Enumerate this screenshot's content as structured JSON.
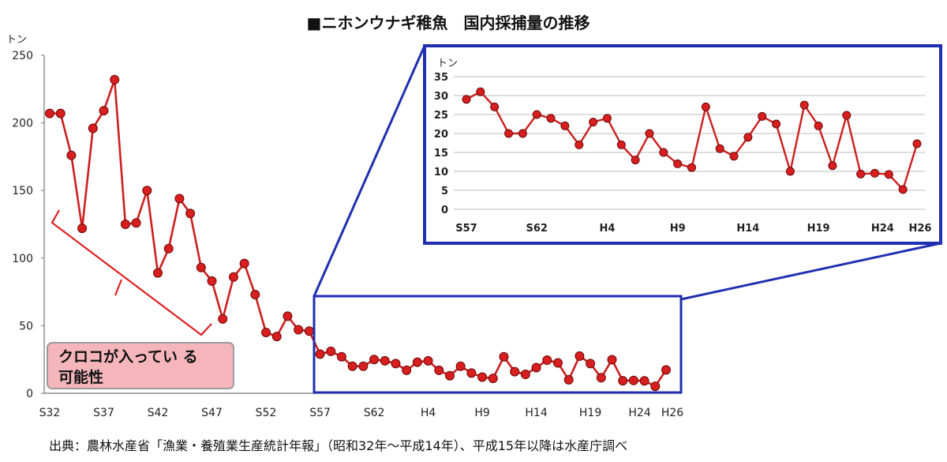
{
  "chart_data": [
    {
      "type": "line",
      "title": "■ニホンウナギ稚魚　国内採捕量の推移",
      "unit_label": "トン",
      "ylim": [
        0,
        250
      ],
      "yticks": [
        0,
        50,
        100,
        150,
        200,
        250
      ],
      "x_tick_labels": [
        "S32",
        "S37",
        "S42",
        "S47",
        "S52",
        "S57",
        "S62",
        "H4",
        "H9",
        "H14",
        "H19",
        "H24",
        "H26"
      ],
      "x_tick_indices": [
        0,
        5,
        10,
        15,
        20,
        25,
        30,
        35,
        40,
        45,
        50,
        55,
        57
      ],
      "series": [
        {
          "color": "#cc1f1f",
          "values": [
            207,
            207,
            176,
            122,
            196,
            209,
            232,
            125,
            126,
            150,
            89,
            107,
            144,
            133,
            93,
            83,
            55,
            86,
            96,
            73,
            45,
            42,
            57,
            47,
            46,
            29,
            31,
            27,
            20,
            20,
            25,
            24,
            22,
            17,
            23,
            24,
            17,
            13,
            20,
            15,
            12,
            11,
            27,
            16,
            14,
            19,
            24.5,
            22.5,
            10,
            27.5,
            22,
            11.5,
            24.8,
            9.3,
            9.5,
            9.2,
            5.2,
            17.3
          ]
        }
      ],
      "annotation": {
        "line1": "クロコが入ってい る",
        "line2": "可能性"
      },
      "source": "出典：農林水産省「漁業・養殖業生産統計年報」（昭和32年～平成14年）、平成15年以降は水産庁調べ"
    },
    {
      "type": "line",
      "unit_label": "トン",
      "ylim": [
        0,
        35
      ],
      "yticks": [
        0,
        5,
        10,
        15,
        20,
        25,
        30,
        35
      ],
      "grid": true,
      "x_tick_labels": [
        "S57",
        "S62",
        "H4",
        "H9",
        "H14",
        "H19",
        "H24",
        "H26"
      ],
      "x_tick_indices": [
        0,
        5,
        10,
        15,
        20,
        25,
        30,
        32
      ],
      "series": [
        {
          "color": "#cc1f1f",
          "values": [
            29,
            31,
            27,
            20,
            20,
            25,
            24,
            22,
            17,
            23,
            24,
            17,
            13,
            20,
            15,
            12,
            11,
            27,
            16,
            14,
            19,
            24.5,
            22.5,
            10,
            27.5,
            22,
            11.5,
            24.8,
            9.3,
            9.5,
            9.2,
            5.2,
            17.3
          ]
        }
      ]
    }
  ]
}
